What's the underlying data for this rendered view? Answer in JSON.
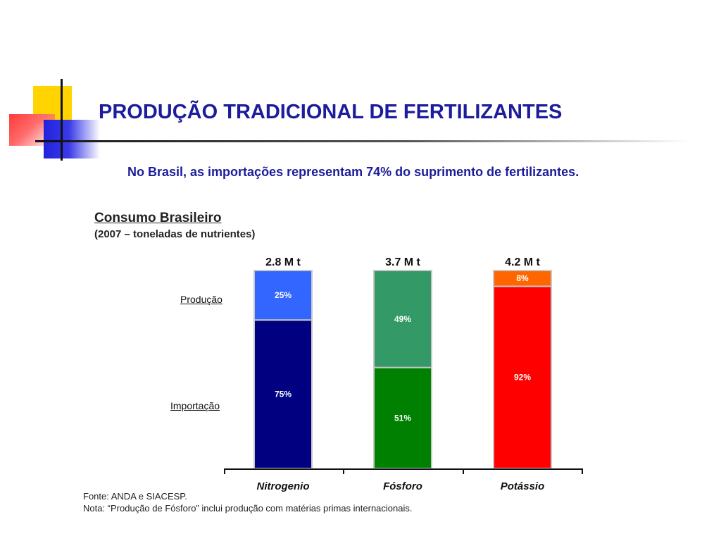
{
  "slide": {
    "title": "PRODUÇÃO TRADICIONAL DE FERTILIZANTES",
    "subtitle": "No Brasil, as importações representam 74% do suprimento de fertilizantes."
  },
  "chart_data": {
    "type": "bar",
    "stacked": true,
    "normalized": true,
    "title": "Consumo Brasileiro",
    "subtitle": "(2007 – toneladas de nutrientes)",
    "categories": [
      "Nitrogenio",
      "Fósforo",
      "Potássio"
    ],
    "totals": [
      "2.8 M t",
      "3.7 M t",
      "4.2 M t"
    ],
    "row_labels": [
      "Produção",
      "Importação"
    ],
    "series": [
      {
        "name": "Importação",
        "values": [
          75,
          51,
          92
        ],
        "labels": [
          "75%",
          "51%",
          "92%"
        ]
      },
      {
        "name": "Produção",
        "values": [
          25,
          49,
          8
        ],
        "labels": [
          "25%",
          "49%",
          "8%"
        ]
      }
    ],
    "colors": {
      "Importação": [
        "#000080",
        "#008000",
        "#ff0000"
      ],
      "Produção": [
        "#3366ff",
        "#339966",
        "#ff6600"
      ]
    },
    "ylim": [
      0,
      100
    ],
    "grid": false,
    "legend": "none"
  },
  "footnotes": {
    "fonte": "Fonte: ANDA e SIACESP.",
    "nota": "Nota: “Produção de Fósforo” inclui produção com matérias primas internacionais."
  }
}
